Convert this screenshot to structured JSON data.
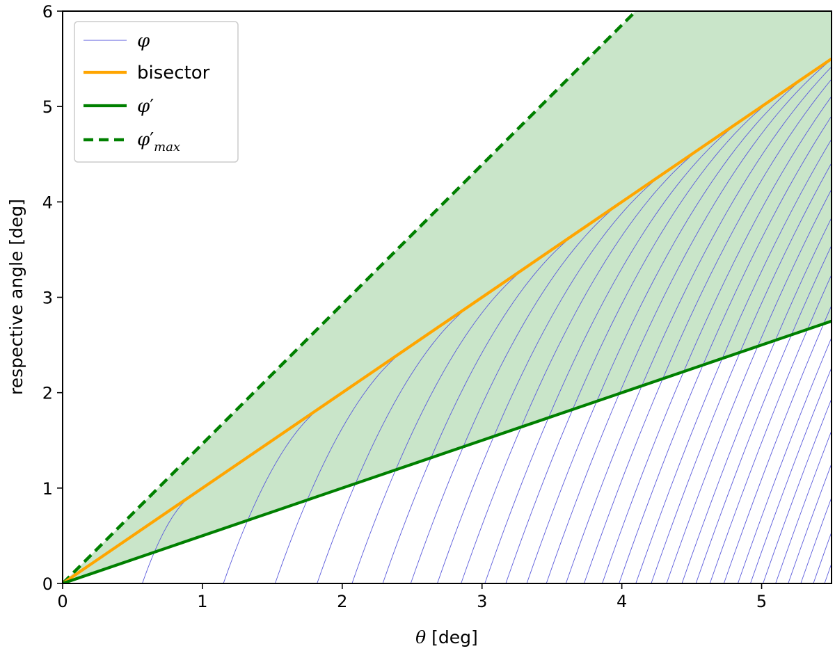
{
  "chart_data": {
    "type": "line",
    "title": "",
    "xlabel": "θ [deg]",
    "ylabel": "respective angle [deg]",
    "xlim": [
      0,
      5.5
    ],
    "ylim": [
      0,
      6
    ],
    "xticks": [
      0,
      1,
      2,
      3,
      4,
      5
    ],
    "yticks": [
      0,
      1,
      2,
      3,
      4,
      5,
      6
    ],
    "grid": false,
    "legend_position": "top-left",
    "legend": [
      {
        "label": "φ",
        "style": "thin-line",
        "color": "#5b5bdc"
      },
      {
        "label": "bisector",
        "style": "solid",
        "color": "#ffa500"
      },
      {
        "label": "φ′",
        "style": "solid",
        "color": "#008000"
      },
      {
        "label": "φ′max",
        "style": "dashed",
        "color": "#008000"
      }
    ],
    "series": [
      {
        "name": "bisector",
        "x": [
          0,
          5.5
        ],
        "y": [
          0,
          5.5
        ]
      },
      {
        "name": "φ′",
        "x": [
          0,
          5.5
        ],
        "y": [
          0,
          2.75
        ]
      },
      {
        "name": "φ′max",
        "x": [
          0,
          4.1
        ],
        "y": [
          0,
          6.0
        ]
      }
    ],
    "fill_region": {
      "between": [
        "φ′",
        "φ′max"
      ],
      "color": "#c9e5c9"
    },
    "phi_curves": {
      "color": "#5b5bdc",
      "family_start_x": [
        0.57,
        1.15,
        1.52,
        1.82,
        2.07,
        2.29,
        2.49,
        2.68,
        2.85,
        3.02,
        3.17,
        3.32,
        3.46,
        3.6,
        3.73,
        3.86,
        3.98,
        4.1,
        4.21,
        4.32,
        4.43,
        4.53,
        4.63,
        4.73,
        4.83,
        4.92,
        5.01,
        5.1,
        5.19,
        5.28,
        5.37,
        5.45
      ],
      "slope_at_start": 4.2,
      "slope_at_end": 1.1,
      "ends_at": "bisector"
    }
  },
  "legend_labels": {
    "phi": "φ",
    "bisector": "bisector",
    "phi_prime_base": "φ",
    "phi_prime_mark": "′",
    "phi_max_base": "φ",
    "phi_max_mark": "′",
    "phi_max_sub": "max"
  },
  "axes": {
    "xlabel_symbol": "θ",
    "xlabel_unit": " [deg]",
    "ylabel": "respective angle [deg]"
  }
}
